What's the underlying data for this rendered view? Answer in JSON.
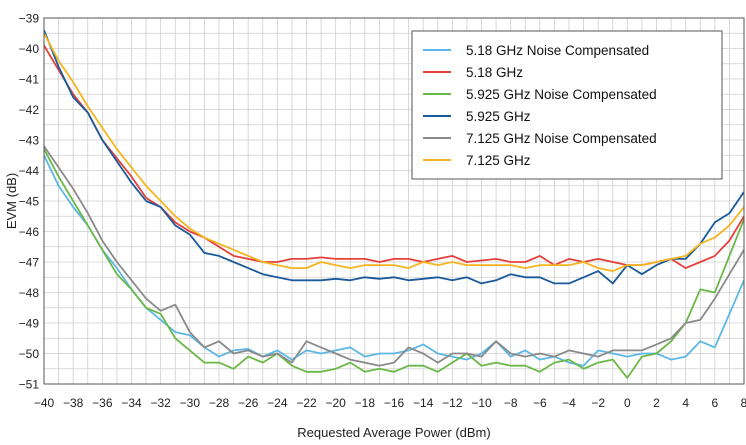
{
  "chart_data": {
    "type": "line",
    "xlabel": "Requested Average Power (dBm)",
    "ylabel": "EVM (dB)",
    "xlim": [
      -40,
      8
    ],
    "ylim": [
      -51,
      -39
    ],
    "grid": true,
    "legend_position": "top-right",
    "x_ticks": [
      "−40",
      "−38",
      "−36",
      "−34",
      "−32",
      "−30",
      "−28",
      "−26",
      "−24",
      "−22",
      "−20",
      "−18",
      "−16",
      "−14",
      "−12",
      "−10",
      "−8",
      "−6",
      "−4",
      "−2",
      "0",
      "2",
      "4",
      "6",
      "8"
    ],
    "y_ticks": [
      "−39",
      "−40",
      "−41",
      "−42",
      "−43",
      "−44",
      "−45",
      "−46",
      "−47",
      "−48",
      "−49",
      "−50",
      "−51"
    ],
    "series": [
      {
        "name": "5.18 GHz Noise Compensated",
        "color": "#5bb8e6",
        "points": [
          [
            -40,
            -43.5
          ],
          [
            -39,
            -44.5
          ],
          [
            -38,
            -45.2
          ],
          [
            -37,
            -45.8
          ],
          [
            -36,
            -46.6
          ],
          [
            -35,
            -47.2
          ],
          [
            -34,
            -47.9
          ],
          [
            -33,
            -48.5
          ],
          [
            -32,
            -48.9
          ],
          [
            -31,
            -49.3
          ],
          [
            -30,
            -49.4
          ],
          [
            -29,
            -49.8
          ],
          [
            -28,
            -50.1
          ],
          [
            -27,
            -49.9
          ],
          [
            -26,
            -49.85
          ],
          [
            -25,
            -50.1
          ],
          [
            -24,
            -49.9
          ],
          [
            -23,
            -50.2
          ],
          [
            -22,
            -49.9
          ],
          [
            -21,
            -50.0
          ],
          [
            -20,
            -49.9
          ],
          [
            -19,
            -49.8
          ],
          [
            -18,
            -50.1
          ],
          [
            -17,
            -50.0
          ],
          [
            -16,
            -50.0
          ],
          [
            -15,
            -49.9
          ],
          [
            -14,
            -49.7
          ],
          [
            -13,
            -50.0
          ],
          [
            -12,
            -50.1
          ],
          [
            -11,
            -50.2
          ],
          [
            -10,
            -50.0
          ],
          [
            -9,
            -49.6
          ],
          [
            -8,
            -50.1
          ],
          [
            -7,
            -49.9
          ],
          [
            -6,
            -50.2
          ],
          [
            -5,
            -50.1
          ],
          [
            -4,
            -50.3
          ],
          [
            -3,
            -50.4
          ],
          [
            -2,
            -49.9
          ],
          [
            -1,
            -50.0
          ],
          [
            0,
            -50.1
          ],
          [
            1,
            -50.0
          ],
          [
            2,
            -50.0
          ],
          [
            3,
            -50.2
          ],
          [
            4,
            -50.1
          ],
          [
            5,
            -49.6
          ],
          [
            6,
            -49.8
          ],
          [
            7,
            -48.7
          ],
          [
            8,
            -47.6
          ]
        ]
      },
      {
        "name": "5.18 GHz",
        "color": "#e5403c",
        "points": [
          [
            -40,
            -39.9
          ],
          [
            -39,
            -40.7
          ],
          [
            -38,
            -41.5
          ],
          [
            -37,
            -42.1
          ],
          [
            -36,
            -43.0
          ],
          [
            -35,
            -43.6
          ],
          [
            -34,
            -44.2
          ],
          [
            -33,
            -44.9
          ],
          [
            -32,
            -45.2
          ],
          [
            -31,
            -45.7
          ],
          [
            -30,
            -46.0
          ],
          [
            -29,
            -46.2
          ],
          [
            -28,
            -46.5
          ],
          [
            -27,
            -46.8
          ],
          [
            -26,
            -46.9
          ],
          [
            -25,
            -47.0
          ],
          [
            -24,
            -47.0
          ],
          [
            -23,
            -46.9
          ],
          [
            -22,
            -46.9
          ],
          [
            -21,
            -46.85
          ],
          [
            -20,
            -46.9
          ],
          [
            -19,
            -46.9
          ],
          [
            -18,
            -46.9
          ],
          [
            -17,
            -47.0
          ],
          [
            -16,
            -46.9
          ],
          [
            -15,
            -46.9
          ],
          [
            -14,
            -47.0
          ],
          [
            -13,
            -46.9
          ],
          [
            -12,
            -46.8
          ],
          [
            -11,
            -47.0
          ],
          [
            -10,
            -46.95
          ],
          [
            -9,
            -46.9
          ],
          [
            -8,
            -47.0
          ],
          [
            -7,
            -47.0
          ],
          [
            -6,
            -46.8
          ],
          [
            -5,
            -47.1
          ],
          [
            -4,
            -46.9
          ],
          [
            -3,
            -47.0
          ],
          [
            -2,
            -46.9
          ],
          [
            -1,
            -47.0
          ],
          [
            0,
            -47.1
          ],
          [
            1,
            -47.1
          ],
          [
            2,
            -47.0
          ],
          [
            3,
            -46.9
          ],
          [
            4,
            -47.2
          ],
          [
            5,
            -47.0
          ],
          [
            6,
            -46.8
          ],
          [
            7,
            -46.3
          ],
          [
            8,
            -45.5
          ]
        ]
      },
      {
        "name": "5.925 GHz Noise Compensated",
        "color": "#6ab846",
        "points": [
          [
            -40,
            -43.3
          ],
          [
            -39,
            -44.2
          ],
          [
            -38,
            -45.0
          ],
          [
            -37,
            -45.8
          ],
          [
            -36,
            -46.6
          ],
          [
            -35,
            -47.4
          ],
          [
            -34,
            -47.9
          ],
          [
            -33,
            -48.5
          ],
          [
            -32,
            -48.7
          ],
          [
            -31,
            -49.5
          ],
          [
            -30,
            -49.9
          ],
          [
            -29,
            -50.3
          ],
          [
            -28,
            -50.3
          ],
          [
            -27,
            -50.5
          ],
          [
            -26,
            -50.1
          ],
          [
            -25,
            -50.3
          ],
          [
            -24,
            -50.0
          ],
          [
            -23,
            -50.4
          ],
          [
            -22,
            -50.6
          ],
          [
            -21,
            -50.6
          ],
          [
            -20,
            -50.5
          ],
          [
            -19,
            -50.3
          ],
          [
            -18,
            -50.6
          ],
          [
            -17,
            -50.5
          ],
          [
            -16,
            -50.6
          ],
          [
            -15,
            -50.4
          ],
          [
            -14,
            -50.4
          ],
          [
            -13,
            -50.6
          ],
          [
            -12,
            -50.3
          ],
          [
            -11,
            -50.0
          ],
          [
            -10,
            -50.4
          ],
          [
            -9,
            -50.3
          ],
          [
            -8,
            -50.4
          ],
          [
            -7,
            -50.4
          ],
          [
            -6,
            -50.6
          ],
          [
            -5,
            -50.3
          ],
          [
            -4,
            -50.2
          ],
          [
            -3,
            -50.5
          ],
          [
            -2,
            -50.3
          ],
          [
            -1,
            -50.2
          ],
          [
            0,
            -50.8
          ],
          [
            1,
            -50.1
          ],
          [
            2,
            -50.0
          ],
          [
            3,
            -49.6
          ],
          [
            4,
            -49.0
          ],
          [
            5,
            -47.9
          ],
          [
            6,
            -48.0
          ],
          [
            7,
            -46.8
          ],
          [
            8,
            -45.6
          ]
        ]
      },
      {
        "name": "5.925 GHz",
        "color": "#1a5a9a",
        "points": [
          [
            -40,
            -39.4
          ],
          [
            -39,
            -40.6
          ],
          [
            -38,
            -41.6
          ],
          [
            -37,
            -42.1
          ],
          [
            -36,
            -43.0
          ],
          [
            -35,
            -43.7
          ],
          [
            -34,
            -44.4
          ],
          [
            -33,
            -45.0
          ],
          [
            -32,
            -45.2
          ],
          [
            -31,
            -45.8
          ],
          [
            -30,
            -46.1
          ],
          [
            -29,
            -46.7
          ],
          [
            -28,
            -46.8
          ],
          [
            -27,
            -47.0
          ],
          [
            -26,
            -47.2
          ],
          [
            -25,
            -47.4
          ],
          [
            -24,
            -47.5
          ],
          [
            -23,
            -47.6
          ],
          [
            -22,
            -47.6
          ],
          [
            -21,
            -47.6
          ],
          [
            -20,
            -47.55
          ],
          [
            -19,
            -47.6
          ],
          [
            -18,
            -47.5
          ],
          [
            -17,
            -47.55
          ],
          [
            -16,
            -47.5
          ],
          [
            -15,
            -47.6
          ],
          [
            -14,
            -47.55
          ],
          [
            -13,
            -47.5
          ],
          [
            -12,
            -47.6
          ],
          [
            -11,
            -47.5
          ],
          [
            -10,
            -47.7
          ],
          [
            -9,
            -47.6
          ],
          [
            -8,
            -47.4
          ],
          [
            -7,
            -47.5
          ],
          [
            -6,
            -47.5
          ],
          [
            -5,
            -47.7
          ],
          [
            -4,
            -47.7
          ],
          [
            -3,
            -47.5
          ],
          [
            -2,
            -47.3
          ],
          [
            -1,
            -47.7
          ],
          [
            0,
            -47.1
          ],
          [
            1,
            -47.4
          ],
          [
            2,
            -47.1
          ],
          [
            3,
            -46.9
          ],
          [
            4,
            -46.9
          ],
          [
            5,
            -46.4
          ],
          [
            6,
            -45.7
          ],
          [
            7,
            -45.4
          ],
          [
            8,
            -44.7
          ]
        ]
      },
      {
        "name": "7.125 GHz Noise Compensated",
        "color": "#8a8a8a",
        "points": [
          [
            -40,
            -43.2
          ],
          [
            -39,
            -43.9
          ],
          [
            -38,
            -44.6
          ],
          [
            -37,
            -45.4
          ],
          [
            -36,
            -46.3
          ],
          [
            -35,
            -47.0
          ],
          [
            -34,
            -47.6
          ],
          [
            -33,
            -48.2
          ],
          [
            -32,
            -48.6
          ],
          [
            -31,
            -48.4
          ],
          [
            -30,
            -49.3
          ],
          [
            -29,
            -49.8
          ],
          [
            -28,
            -49.6
          ],
          [
            -27,
            -50.0
          ],
          [
            -26,
            -49.9
          ],
          [
            -25,
            -50.1
          ],
          [
            -24,
            -50.0
          ],
          [
            -23,
            -50.3
          ],
          [
            -22,
            -49.6
          ],
          [
            -21,
            -49.8
          ],
          [
            -20,
            -50.0
          ],
          [
            -19,
            -50.2
          ],
          [
            -18,
            -50.3
          ],
          [
            -17,
            -50.4
          ],
          [
            -16,
            -50.3
          ],
          [
            -15,
            -49.8
          ],
          [
            -14,
            -50.0
          ],
          [
            -13,
            -50.3
          ],
          [
            -12,
            -50.0
          ],
          [
            -11,
            -50.0
          ],
          [
            -10,
            -50.1
          ],
          [
            -9,
            -49.6
          ],
          [
            -8,
            -50.0
          ],
          [
            -7,
            -50.1
          ],
          [
            -6,
            -50.0
          ],
          [
            -5,
            -50.1
          ],
          [
            -4,
            -49.9
          ],
          [
            -3,
            -50.0
          ],
          [
            -2,
            -50.1
          ],
          [
            -1,
            -49.9
          ],
          [
            0,
            -49.9
          ],
          [
            1,
            -49.9
          ],
          [
            2,
            -49.7
          ],
          [
            3,
            -49.5
          ],
          [
            4,
            -49.0
          ],
          [
            5,
            -48.9
          ],
          [
            6,
            -48.2
          ],
          [
            7,
            -47.4
          ],
          [
            8,
            -46.6
          ]
        ]
      },
      {
        "name": "7.125 GHz",
        "color": "#f5b51f",
        "points": [
          [
            -40,
            -39.5
          ],
          [
            -39,
            -40.4
          ],
          [
            -38,
            -41.1
          ],
          [
            -37,
            -41.9
          ],
          [
            -36,
            -42.6
          ],
          [
            -35,
            -43.3
          ],
          [
            -34,
            -43.9
          ],
          [
            -33,
            -44.5
          ],
          [
            -32,
            -45.0
          ],
          [
            -31,
            -45.5
          ],
          [
            -30,
            -45.9
          ],
          [
            -29,
            -46.2
          ],
          [
            -28,
            -46.4
          ],
          [
            -27,
            -46.6
          ],
          [
            -26,
            -46.8
          ],
          [
            -25,
            -47.0
          ],
          [
            -24,
            -47.1
          ],
          [
            -23,
            -47.2
          ],
          [
            -22,
            -47.2
          ],
          [
            -21,
            -47.0
          ],
          [
            -20,
            -47.1
          ],
          [
            -19,
            -47.2
          ],
          [
            -18,
            -47.1
          ],
          [
            -17,
            -47.1
          ],
          [
            -16,
            -47.1
          ],
          [
            -15,
            -47.2
          ],
          [
            -14,
            -47.0
          ],
          [
            -13,
            -47.1
          ],
          [
            -12,
            -47.0
          ],
          [
            -11,
            -47.1
          ],
          [
            -10,
            -47.1
          ],
          [
            -9,
            -47.1
          ],
          [
            -8,
            -47.1
          ],
          [
            -7,
            -47.2
          ],
          [
            -6,
            -47.1
          ],
          [
            -5,
            -47.1
          ],
          [
            -4,
            -47.1
          ],
          [
            -3,
            -47.0
          ],
          [
            -2,
            -47.2
          ],
          [
            -1,
            -47.3
          ],
          [
            0,
            -47.1
          ],
          [
            1,
            -47.1
          ],
          [
            2,
            -47.0
          ],
          [
            3,
            -46.9
          ],
          [
            4,
            -46.8
          ],
          [
            5,
            -46.4
          ],
          [
            6,
            -46.2
          ],
          [
            7,
            -45.8
          ],
          [
            8,
            -45.2
          ]
        ]
      }
    ]
  }
}
